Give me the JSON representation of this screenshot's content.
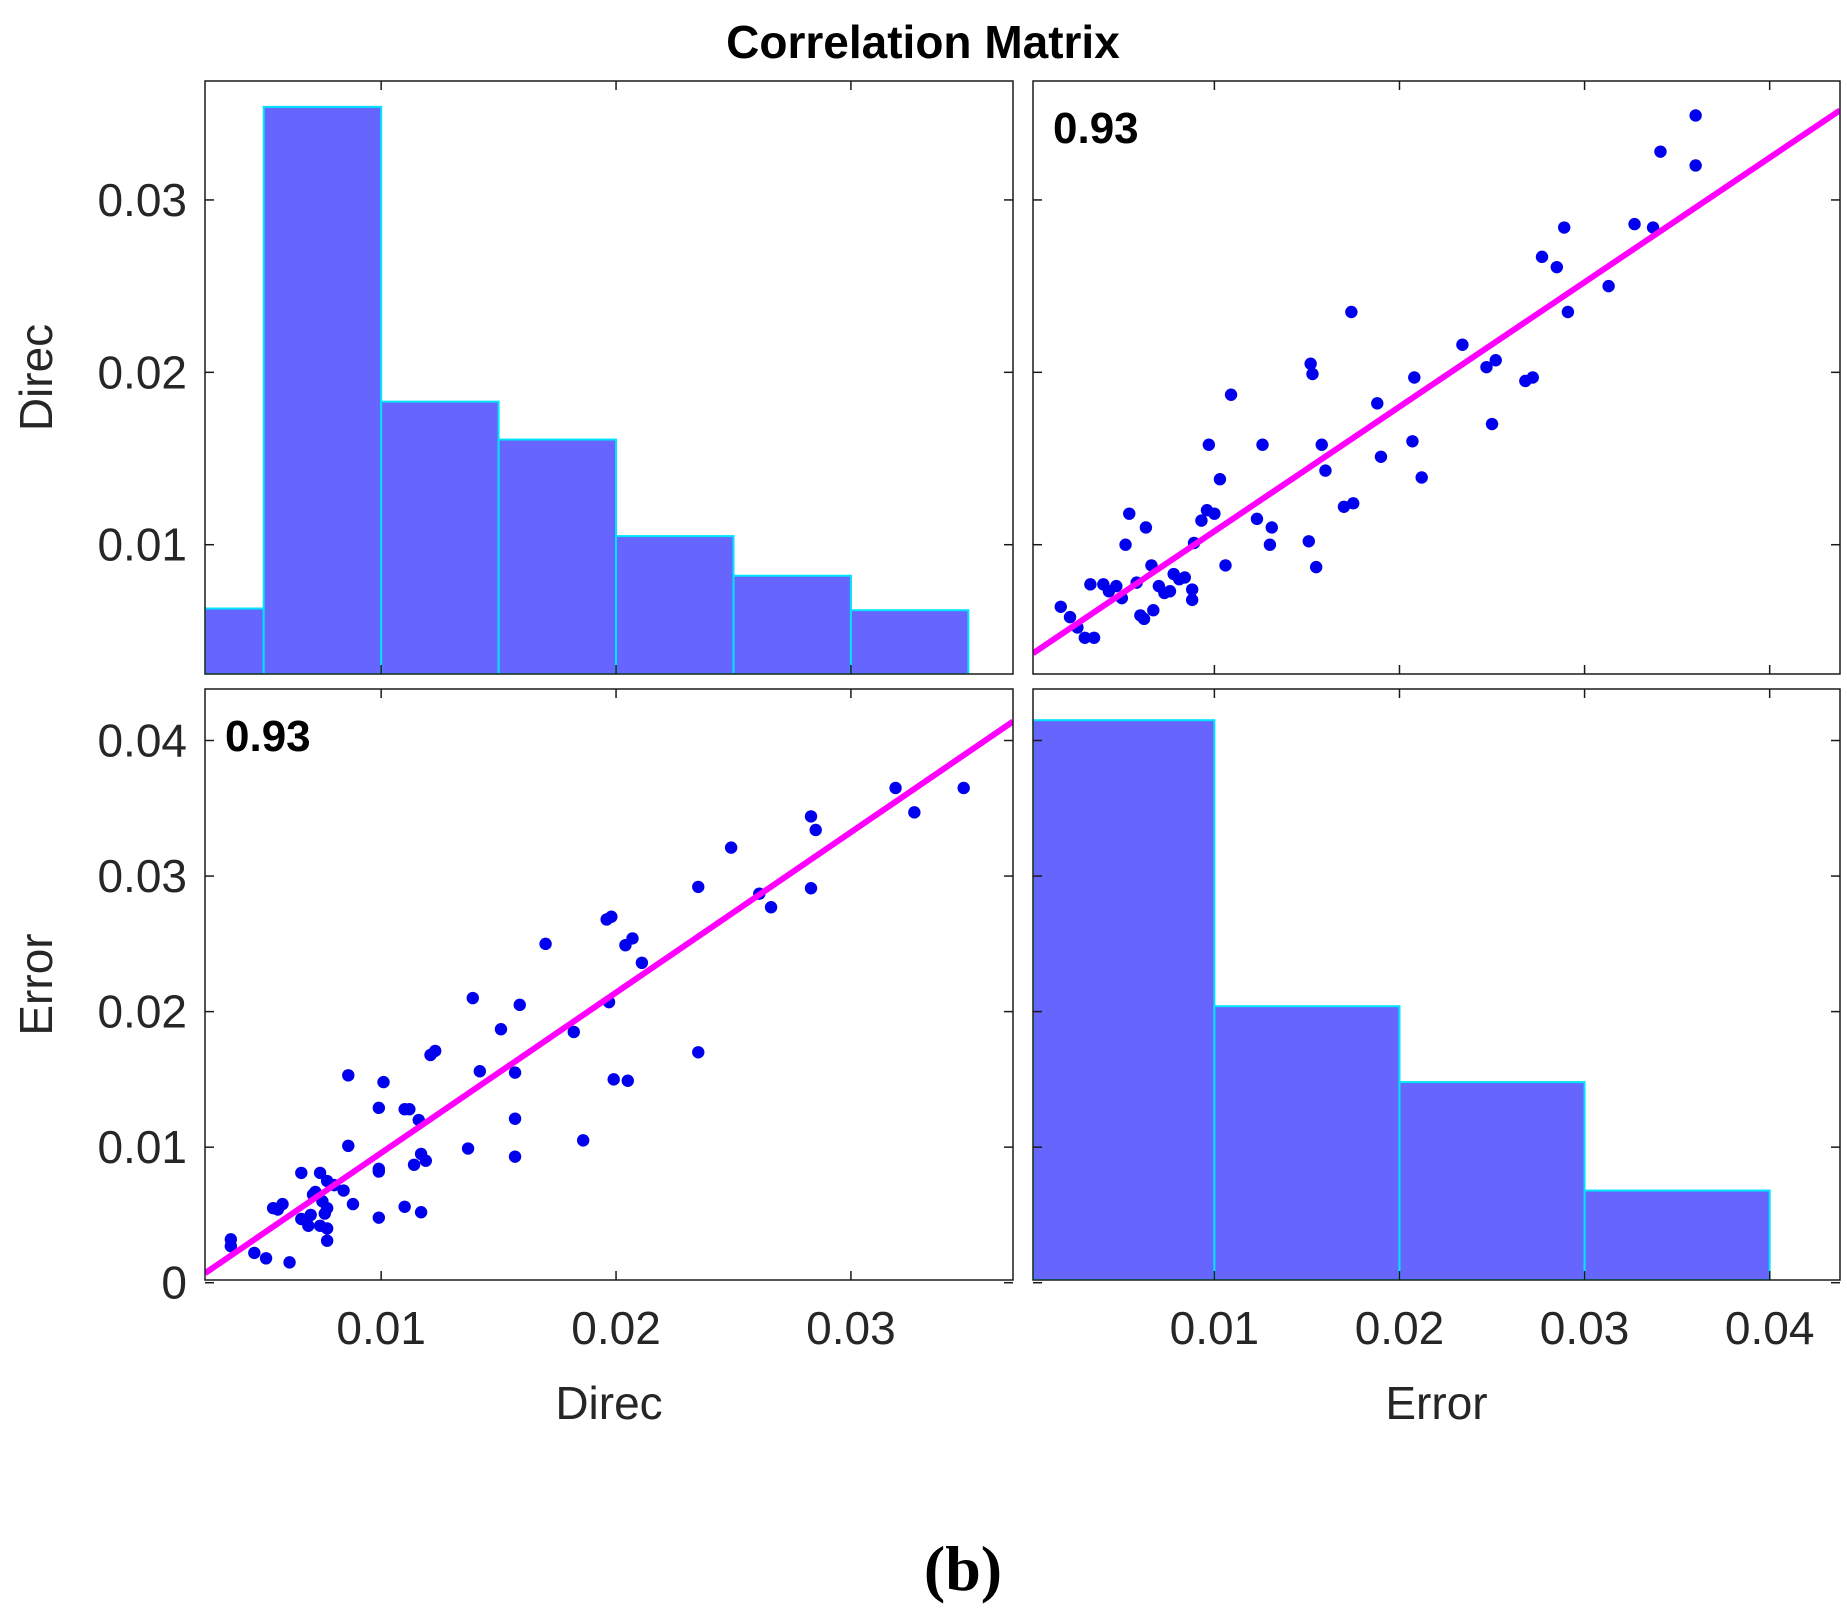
{
  "figure": {
    "title": "Correlation Matrix",
    "caption": "(b)",
    "colors": {
      "bar_fill": "#6666ff",
      "bar_edge": "#00e5ff",
      "points": "#0000ee",
      "fit_line": "#ff00ff",
      "axes": "#1a1a1a",
      "text": "#262626"
    }
  },
  "chart_data": [
    {
      "panel": "top-left",
      "type": "bar",
      "subtype": "histogram",
      "variable": "Direc",
      "title": "",
      "xlabel": "",
      "ylabel": "Direc",
      "xlim": [
        0.0025,
        0.0369
      ],
      "ylim": [
        0.0025,
        0.0369
      ],
      "bin_edges": [
        0.0025,
        0.005,
        0.01,
        0.015,
        0.02,
        0.025,
        0.03,
        0.035
      ],
      "values": [
        0.0063,
        0.0354,
        0.0183,
        0.0161,
        0.0105,
        0.0082,
        0.0062
      ],
      "y_ticks": [
        0.01,
        0.02,
        0.03
      ],
      "y_tick_labels": [
        "0.01",
        "0.02",
        "0.03"
      ]
    },
    {
      "panel": "top-right",
      "type": "scatter",
      "correlation_label": "0.93",
      "xlabel": "",
      "ylabel": "",
      "x_variable": "Error",
      "y_variable": "Direc",
      "xlim": [
        0.0002,
        0.0438
      ],
      "ylim": [
        0.0025,
        0.0369
      ],
      "fit_line": {
        "x": [
          0.0002,
          0.0438
        ],
        "y": [
          0.0037,
          0.0352
        ]
      },
      "points": [
        [
          0.0017,
          0.0064
        ],
        [
          0.0022,
          0.0058
        ],
        [
          0.0026,
          0.0052
        ],
        [
          0.003,
          0.0046
        ],
        [
          0.0035,
          0.0046
        ],
        [
          0.0033,
          0.0077
        ],
        [
          0.004,
          0.0077
        ],
        [
          0.0043,
          0.0073
        ],
        [
          0.0047,
          0.0076
        ],
        [
          0.005,
          0.0069
        ],
        [
          0.0052,
          0.01
        ],
        [
          0.0054,
          0.0118
        ],
        [
          0.0058,
          0.0078
        ],
        [
          0.006,
          0.0059
        ],
        [
          0.0062,
          0.0057
        ],
        [
          0.0063,
          0.011
        ],
        [
          0.0066,
          0.0088
        ],
        [
          0.0067,
          0.0062
        ],
        [
          0.007,
          0.0076
        ],
        [
          0.0073,
          0.0072
        ],
        [
          0.0076,
          0.0073
        ],
        [
          0.0078,
          0.0083
        ],
        [
          0.0081,
          0.008
        ],
        [
          0.0084,
          0.0081
        ],
        [
          0.0088,
          0.0074
        ],
        [
          0.0088,
          0.0068
        ],
        [
          0.0089,
          0.0101
        ],
        [
          0.0093,
          0.0114
        ],
        [
          0.0096,
          0.012
        ],
        [
          0.0097,
          0.0158
        ],
        [
          0.01,
          0.0118
        ],
        [
          0.0103,
          0.0138
        ],
        [
          0.0106,
          0.0088
        ],
        [
          0.0109,
          0.0187
        ],
        [
          0.0123,
          0.0115
        ],
        [
          0.0126,
          0.0158
        ],
        [
          0.013,
          0.01
        ],
        [
          0.0131,
          0.011
        ],
        [
          0.0151,
          0.0102
        ],
        [
          0.0152,
          0.0205
        ],
        [
          0.0153,
          0.0199
        ],
        [
          0.0155,
          0.0087
        ],
        [
          0.0158,
          0.0158
        ],
        [
          0.016,
          0.0143
        ],
        [
          0.017,
          0.0122
        ],
        [
          0.0174,
          0.0235
        ],
        [
          0.0175,
          0.0124
        ],
        [
          0.0188,
          0.0182
        ],
        [
          0.019,
          0.0151
        ],
        [
          0.0207,
          0.016
        ],
        [
          0.0208,
          0.0197
        ],
        [
          0.0212,
          0.0139
        ],
        [
          0.0234,
          0.0216
        ],
        [
          0.0247,
          0.0203
        ],
        [
          0.025,
          0.017
        ],
        [
          0.0252,
          0.0207
        ],
        [
          0.0268,
          0.0195
        ],
        [
          0.0272,
          0.0197
        ],
        [
          0.0277,
          0.0267
        ],
        [
          0.0285,
          0.0261
        ],
        [
          0.0289,
          0.0284
        ],
        [
          0.0291,
          0.0235
        ],
        [
          0.0313,
          0.025
        ],
        [
          0.0327,
          0.0286
        ],
        [
          0.0337,
          0.0284
        ],
        [
          0.0341,
          0.0328
        ],
        [
          0.036,
          0.032
        ],
        [
          0.036,
          0.0349
        ]
      ]
    },
    {
      "panel": "bottom-left",
      "type": "scatter",
      "correlation_label": "0.93",
      "xlabel": "Direc",
      "ylabel": "Error",
      "x_variable": "Direc",
      "y_variable": "Error",
      "xlim": [
        0.0025,
        0.0369
      ],
      "ylim": [
        0.0002,
        0.0438
      ],
      "fit_line": {
        "x": [
          0.0025,
          0.0369
        ],
        "y": [
          0.0007,
          0.0414
        ]
      },
      "x_ticks": [
        0.01,
        0.02,
        0.03
      ],
      "x_tick_labels": [
        "0.01",
        "0.02",
        "0.03"
      ],
      "y_ticks": [
        0,
        0.01,
        0.02,
        0.03,
        0.04
      ],
      "y_tick_labels": [
        "0",
        "0.01",
        "0.02",
        "0.03",
        "0.04"
      ],
      "points": [
        [
          0.0036,
          0.0032
        ],
        [
          0.0036,
          0.0027
        ],
        [
          0.0046,
          0.0022
        ],
        [
          0.0051,
          0.0018
        ],
        [
          0.0054,
          0.0055
        ],
        [
          0.0056,
          0.0054
        ],
        [
          0.0058,
          0.0058
        ],
        [
          0.0061,
          0.0015
        ],
        [
          0.0066,
          0.0081
        ],
        [
          0.0066,
          0.0047
        ],
        [
          0.0069,
          0.0042
        ],
        [
          0.007,
          0.005
        ],
        [
          0.0071,
          0.0065
        ],
        [
          0.0072,
          0.0067
        ],
        [
          0.0074,
          0.0081
        ],
        [
          0.0074,
          0.0042
        ],
        [
          0.0075,
          0.006
        ],
        [
          0.0076,
          0.0051
        ],
        [
          0.0077,
          0.0075
        ],
        [
          0.0077,
          0.0055
        ],
        [
          0.0077,
          0.004
        ],
        [
          0.0077,
          0.0031
        ],
        [
          0.008,
          0.0072
        ],
        [
          0.0084,
          0.0068
        ],
        [
          0.0086,
          0.0153
        ],
        [
          0.0086,
          0.0101
        ],
        [
          0.0088,
          0.0058
        ],
        [
          0.0099,
          0.0129
        ],
        [
          0.0099,
          0.0084
        ],
        [
          0.0099,
          0.0082
        ],
        [
          0.0099,
          0.0048
        ],
        [
          0.0101,
          0.0148
        ],
        [
          0.011,
          0.0128
        ],
        [
          0.011,
          0.0056
        ],
        [
          0.0112,
          0.0128
        ],
        [
          0.0114,
          0.0087
        ],
        [
          0.0116,
          0.012
        ],
        [
          0.0117,
          0.0052
        ],
        [
          0.0117,
          0.0095
        ],
        [
          0.0119,
          0.009
        ],
        [
          0.0121,
          0.0168
        ],
        [
          0.0123,
          0.0171
        ],
        [
          0.0137,
          0.0099
        ],
        [
          0.0139,
          0.021
        ],
        [
          0.0142,
          0.0156
        ],
        [
          0.0151,
          0.0187
        ],
        [
          0.0157,
          0.0121
        ],
        [
          0.0157,
          0.0093
        ],
        [
          0.0157,
          0.0155
        ],
        [
          0.0159,
          0.0205
        ],
        [
          0.017,
          0.025
        ],
        [
          0.0182,
          0.0185
        ],
        [
          0.0186,
          0.0105
        ],
        [
          0.0196,
          0.0268
        ],
        [
          0.0197,
          0.0207
        ],
        [
          0.0198,
          0.027
        ],
        [
          0.0199,
          0.015
        ],
        [
          0.0204,
          0.0249
        ],
        [
          0.0205,
          0.0149
        ],
        [
          0.0207,
          0.0254
        ],
        [
          0.0211,
          0.0236
        ],
        [
          0.0235,
          0.017
        ],
        [
          0.0235,
          0.0292
        ],
        [
          0.0249,
          0.0321
        ],
        [
          0.0261,
          0.0287
        ],
        [
          0.0266,
          0.0277
        ],
        [
          0.0283,
          0.0291
        ],
        [
          0.0283,
          0.0344
        ],
        [
          0.0285,
          0.0334
        ],
        [
          0.0319,
          0.0365
        ],
        [
          0.0327,
          0.0347
        ],
        [
          0.0348,
          0.0365
        ]
      ]
    },
    {
      "panel": "bottom-right",
      "type": "bar",
      "subtype": "histogram",
      "variable": "Error",
      "title": "",
      "xlabel": "Error",
      "ylabel": "",
      "xlim": [
        0.0002,
        0.0438
      ],
      "ylim": [
        0.0002,
        0.0438
      ],
      "bin_edges": [
        0.0,
        0.01,
        0.02,
        0.03,
        0.04
      ],
      "values": [
        0.0415,
        0.0204,
        0.0148,
        0.0068
      ],
      "x_ticks": [
        0.01,
        0.02,
        0.03,
        0.04
      ],
      "x_tick_labels": [
        "0.01",
        "0.02",
        "0.03",
        "0.04"
      ]
    }
  ]
}
